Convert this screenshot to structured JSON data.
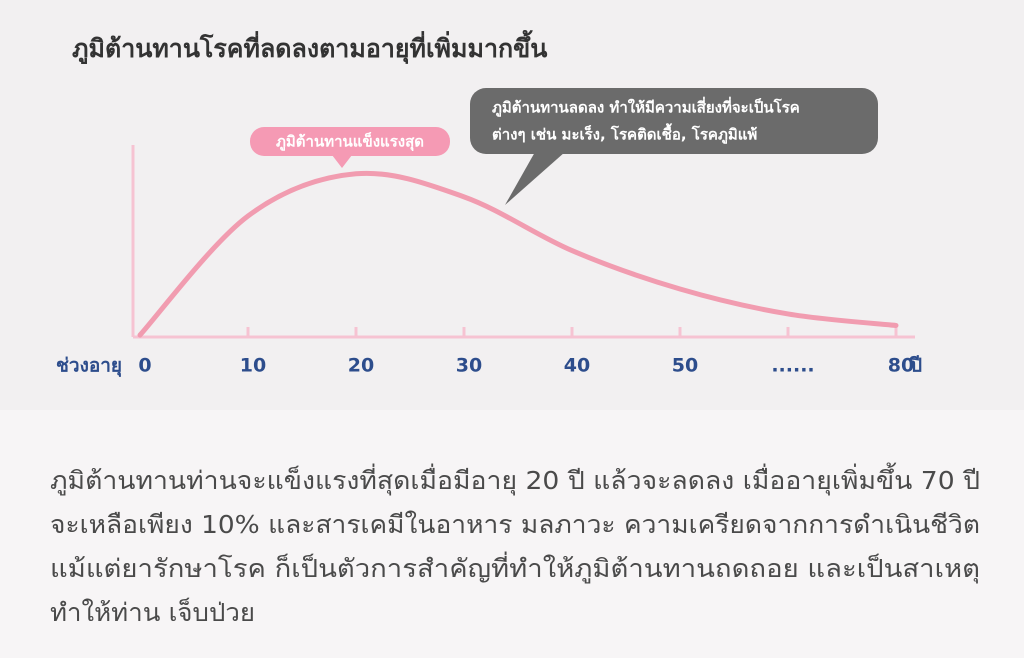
{
  "chart_data": {
    "type": "line",
    "title": "ภูมิต้านทานโรคที่ลดลงตามอายุที่เพิ่มมากขึ้น",
    "x_label": "ช่วงอายุ",
    "x_unit": "ปี",
    "categories": [
      "0",
      "10",
      "20",
      "30",
      "40",
      "50",
      "......",
      "80"
    ],
    "values": [
      1,
      63,
      85,
      73,
      45,
      25,
      12,
      6
    ],
    "color": "#f19cb0",
    "ylim": [
      0,
      100
    ],
    "annotations": [
      {
        "text": "ภูมิต้านทานแข็งแรงสุด",
        "color": "#f59ab4"
      },
      {
        "lines": [
          "ภูมิต้านทานลดลง ทำให้มีความเสี่ยงที่จะเป็นโรค",
          "ต่างๆ เช่น มะเร็ง, โรคติดเชื้อ, โรคภูมิแพ้"
        ],
        "color": "#6b6b6b"
      }
    ]
  },
  "description": [
    "ภูมิต้านทานท่านจะแข็งแรงที่สุดเมื่อมีอายุ 20 ปี แล้วจะลดลง เมื่ออายุเพิ่มขึ้น 70 ปี",
    "จะเหลือเพียง 10% และสารเคมีในอาหาร มลภาวะ ความเครียดจากการดำเนินชีวิต",
    "แม้แต่ยารักษาโรค ก็เป็นตัวการสำคัญที่ทำให้ภูมิต้านทานถดถอย และเป็นสาเหตุ",
    "ทำให้ท่าน เจ็บป่วย"
  ]
}
